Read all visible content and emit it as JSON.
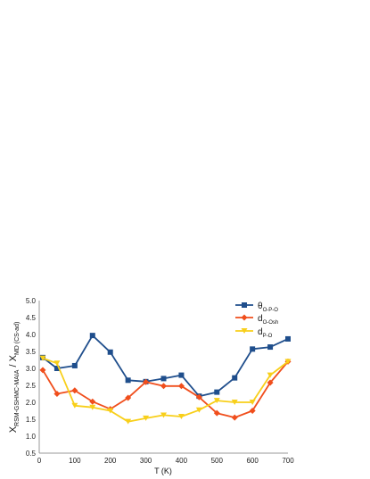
{
  "chart_data": {
    "type": "line",
    "xlabel": "T (K)",
    "ylabel": {
      "x_main": "X",
      "x_sub": "RSM-GSHMC-MAIA",
      "sep": " / X",
      "md_sub": "MD (CS-ad)"
    },
    "xlim": [
      0,
      700
    ],
    "ylim": [
      0.5,
      5.0
    ],
    "x_ticks": [
      0,
      100,
      200,
      300,
      400,
      500,
      600,
      700
    ],
    "y_ticks": [
      "0.5",
      "1.0",
      "1.5",
      "2.0",
      "2.5",
      "3.0",
      "3.5",
      "4.0",
      "4.5",
      "5.0"
    ],
    "grid": false,
    "legend_position": "top-right",
    "series": [
      {
        "id": "theta",
        "legend_main": "θ",
        "legend_sub": "O-P-O",
        "color": "#1f4e8c",
        "marker": "square",
        "x": [
          10,
          50,
          100,
          150,
          200,
          250,
          300,
          350,
          400,
          450,
          500,
          550,
          600,
          650,
          700
        ],
        "values": [
          3.32,
          3.0,
          3.08,
          3.97,
          3.48,
          2.65,
          2.61,
          2.7,
          2.8,
          2.18,
          2.3,
          2.72,
          3.57,
          3.63,
          3.87
        ]
      },
      {
        "id": "d_oosh",
        "legend_main": "d",
        "legend_sub": "O-Osh",
        "color": "#f04e1c",
        "marker": "diamond",
        "x": [
          10,
          50,
          100,
          150,
          200,
          250,
          300,
          350,
          400,
          450,
          500,
          550,
          600,
          650,
          700
        ],
        "values": [
          2.95,
          2.25,
          2.35,
          2.02,
          1.8,
          2.13,
          2.6,
          2.48,
          2.48,
          2.15,
          1.68,
          1.55,
          1.75,
          2.58,
          3.2
        ]
      },
      {
        "id": "d_po",
        "legend_main": "d",
        "legend_sub": "P-O",
        "color": "#f8cf1a",
        "marker": "triangle-down",
        "x": [
          10,
          50,
          100,
          150,
          200,
          250,
          300,
          350,
          400,
          450,
          500,
          550,
          600,
          650,
          700
        ],
        "values": [
          3.3,
          3.15,
          1.9,
          1.85,
          1.75,
          1.43,
          1.53,
          1.62,
          1.58,
          1.77,
          2.05,
          2.0,
          2.0,
          2.8,
          3.2
        ]
      }
    ]
  }
}
